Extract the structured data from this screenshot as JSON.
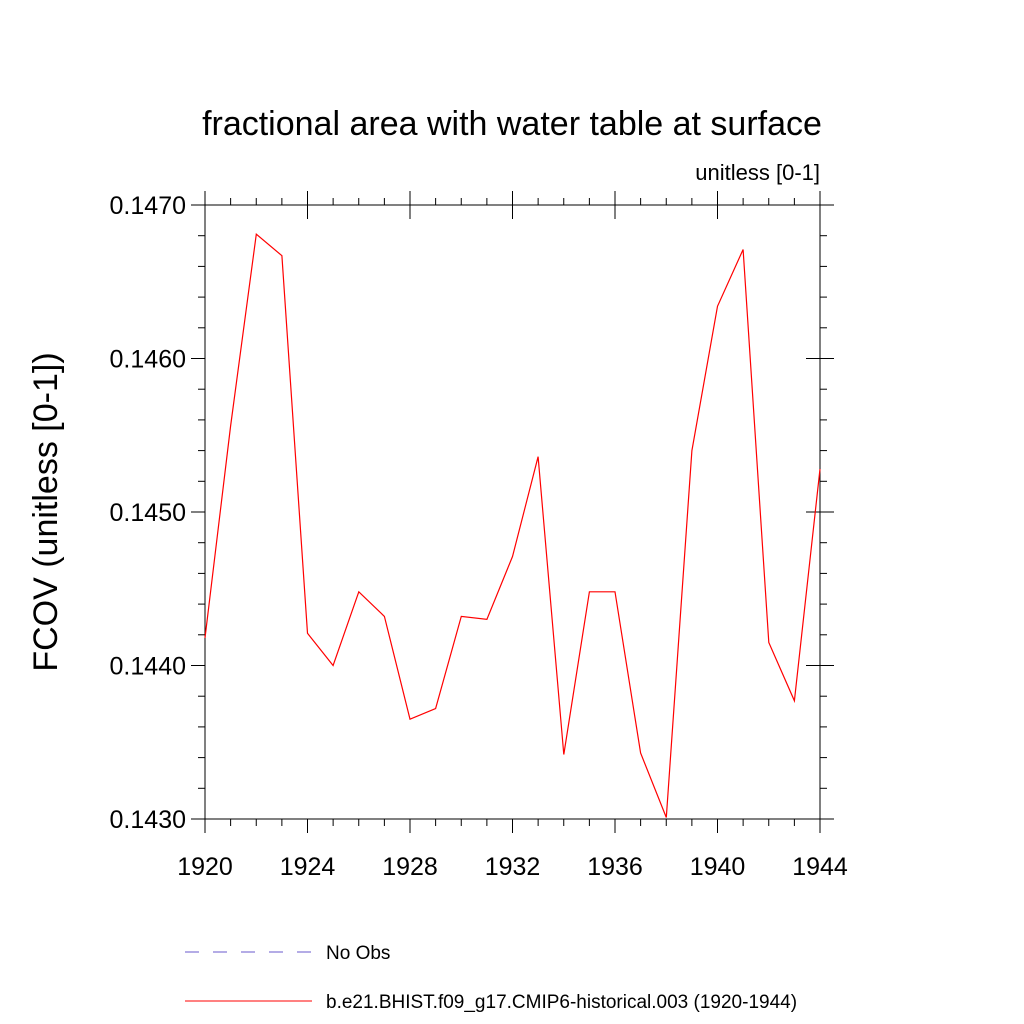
{
  "chart_data": {
    "type": "line",
    "title": "fractional area with water table at surface",
    "subtitle": "unitless [0-1]",
    "ylabel": "FCOV  (unitless [0-1])",
    "xlabel": "",
    "xlim": [
      1920,
      1944
    ],
    "ylim": [
      0.143,
      0.147
    ],
    "x_ticks": [
      1920,
      1924,
      1928,
      1932,
      1936,
      1940,
      1944
    ],
    "x_tick_labels": [
      "1920",
      "1924",
      "1928",
      "1932",
      "1936",
      "1940",
      "1944"
    ],
    "y_ticks": [
      0.143,
      0.144,
      0.145,
      0.146,
      0.147
    ],
    "y_tick_labels": [
      "0.1430",
      "0.1440",
      "0.1450",
      "0.1460",
      "0.1470"
    ],
    "grid": false,
    "series": [
      {
        "name": "b.e21.BHIST.f09_g17.CMIP6-historical.003 (1920-1944)",
        "color": "#ff0000",
        "dash": "solid",
        "x": [
          1920,
          1921,
          1922,
          1923,
          1924,
          1925,
          1926,
          1927,
          1928,
          1929,
          1930,
          1931,
          1932,
          1933,
          1934,
          1935,
          1936,
          1937,
          1938,
          1939,
          1940,
          1941,
          1942,
          1943,
          1944
        ],
        "values": [
          0.14418,
          0.14556,
          0.14681,
          0.14667,
          0.14421,
          0.144,
          0.14448,
          0.14432,
          0.14365,
          0.14372,
          0.14432,
          0.1443,
          0.14471,
          0.14536,
          0.14342,
          0.14448,
          0.14448,
          0.14343,
          0.14301,
          0.1454,
          0.14634,
          0.14671,
          0.14415,
          0.14377,
          0.14528
        ]
      }
    ],
    "legend": [
      {
        "label": "No Obs",
        "color": "#6a5acd",
        "dash": "dashed"
      },
      {
        "label": "b.e21.BHIST.f09_g17.CMIP6-historical.003 (1920-1944)",
        "color": "#ff0000",
        "dash": "solid"
      }
    ],
    "legend_position": "bottom"
  }
}
